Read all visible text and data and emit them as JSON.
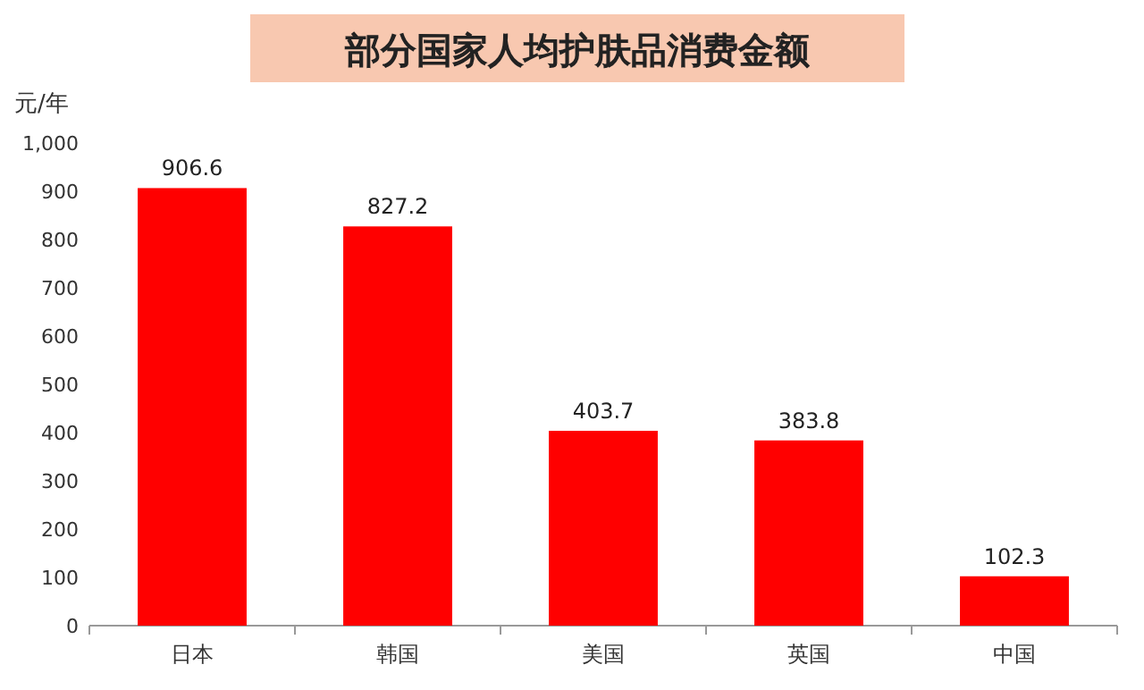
{
  "chart_data": {
    "type": "bar",
    "title": "部分国家人均护肤品消费金额",
    "ylabel": "元/年",
    "categories": [
      "日本",
      "韩国",
      "美国",
      "英国",
      "中国"
    ],
    "values": [
      906.6,
      827.2,
      403.7,
      383.8,
      102.3
    ],
    "color": "#ff0000",
    "ylim": [
      0,
      1000
    ],
    "yticks": [
      0,
      100,
      200,
      300,
      400,
      500,
      600,
      700,
      800,
      900,
      {
        "value": 1000,
        "label": "1,000"
      }
    ],
    "data_labels": true
  }
}
